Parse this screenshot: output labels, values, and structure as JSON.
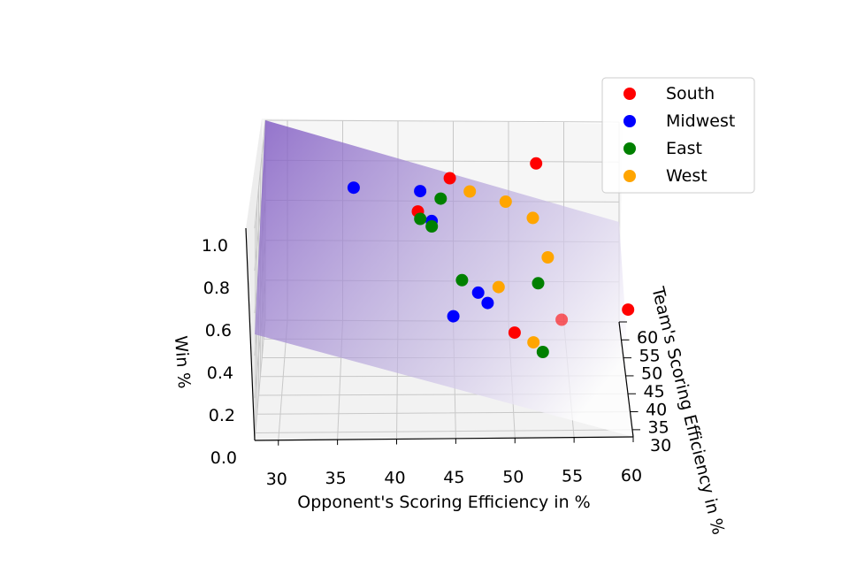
{
  "chart_data": {
    "type": "scatter",
    "subtype": "3d-scatter-with-regression-plane",
    "title": "",
    "xlabel": "Opponent's Scoring Efficiency in %",
    "ylabel": "Team's Scoring Efficiency in %",
    "zlabel": "Win %",
    "xlim": [
      28,
      60
    ],
    "ylim": [
      28,
      60
    ],
    "zlim": [
      0,
      1
    ],
    "x_ticks": [
      "30",
      "35",
      "40",
      "45",
      "50",
      "55",
      "60"
    ],
    "y_ticks": [
      "30",
      "35",
      "40",
      "45",
      "50",
      "55",
      "60"
    ],
    "z_ticks": [
      "0.0",
      "0.2",
      "0.4",
      "0.6",
      "0.8",
      "1.0"
    ],
    "grid": true,
    "legend_position": "top-right",
    "plane": {
      "color": "#7e57c2",
      "fit": "Win % = 0.5 + 0.025*(Team - Opponent)"
    },
    "series": [
      {
        "name": "South",
        "color": "#ff0000",
        "points": [
          {
            "x": 41.8,
            "y": 42.0,
            "z": 0.85
          },
          {
            "x": 44.6,
            "y": 46.4,
            "z": 0.94
          },
          {
            "x": 52.4,
            "y": 55.8,
            "z": 0.86
          },
          {
            "x": 50.2,
            "y": 41.0,
            "z": 0.28
          },
          {
            "x": 54.4,
            "y": 45.2,
            "z": 0.27
          },
          {
            "x": 60.4,
            "y": 49.8,
            "z": 0.24
          }
        ]
      },
      {
        "name": "Midwest",
        "color": "#0000ff",
        "points": [
          {
            "x": 36.2,
            "y": 43.0,
            "z": 0.95
          },
          {
            "x": 42.0,
            "y": 45.0,
            "z": 0.9
          },
          {
            "x": 43.0,
            "y": 41.6,
            "z": 0.81
          },
          {
            "x": 44.8,
            "y": 29.0,
            "z": 0.56
          },
          {
            "x": 47.0,
            "y": 38.2,
            "z": 0.52
          },
          {
            "x": 47.8,
            "y": 36.4,
            "z": 0.5
          }
        ]
      },
      {
        "name": "East",
        "color": "#008000",
        "points": [
          {
            "x": 42.0,
            "y": 40.4,
            "z": 0.84
          },
          {
            "x": 43.8,
            "y": 45.2,
            "z": 0.86
          },
          {
            "x": 43.0,
            "y": 40.0,
            "z": 0.81
          },
          {
            "x": 45.6,
            "y": 37.0,
            "z": 0.6
          },
          {
            "x": 52.4,
            "y": 48.0,
            "z": 0.4
          },
          {
            "x": 52.6,
            "y": 39.0,
            "z": 0.22
          }
        ]
      },
      {
        "name": "West",
        "color": "#ffa500",
        "points": [
          {
            "x": 46.4,
            "y": 50.4,
            "z": 0.81
          },
          {
            "x": 49.6,
            "y": 51.6,
            "z": 0.74
          },
          {
            "x": 48.8,
            "y": 40.4,
            "z": 0.51
          },
          {
            "x": 52.0,
            "y": 51.0,
            "z": 0.67
          },
          {
            "x": 53.2,
            "y": 46.0,
            "z": 0.56
          },
          {
            "x": 51.8,
            "y": 39.4,
            "z": 0.26
          }
        ]
      }
    ]
  }
}
